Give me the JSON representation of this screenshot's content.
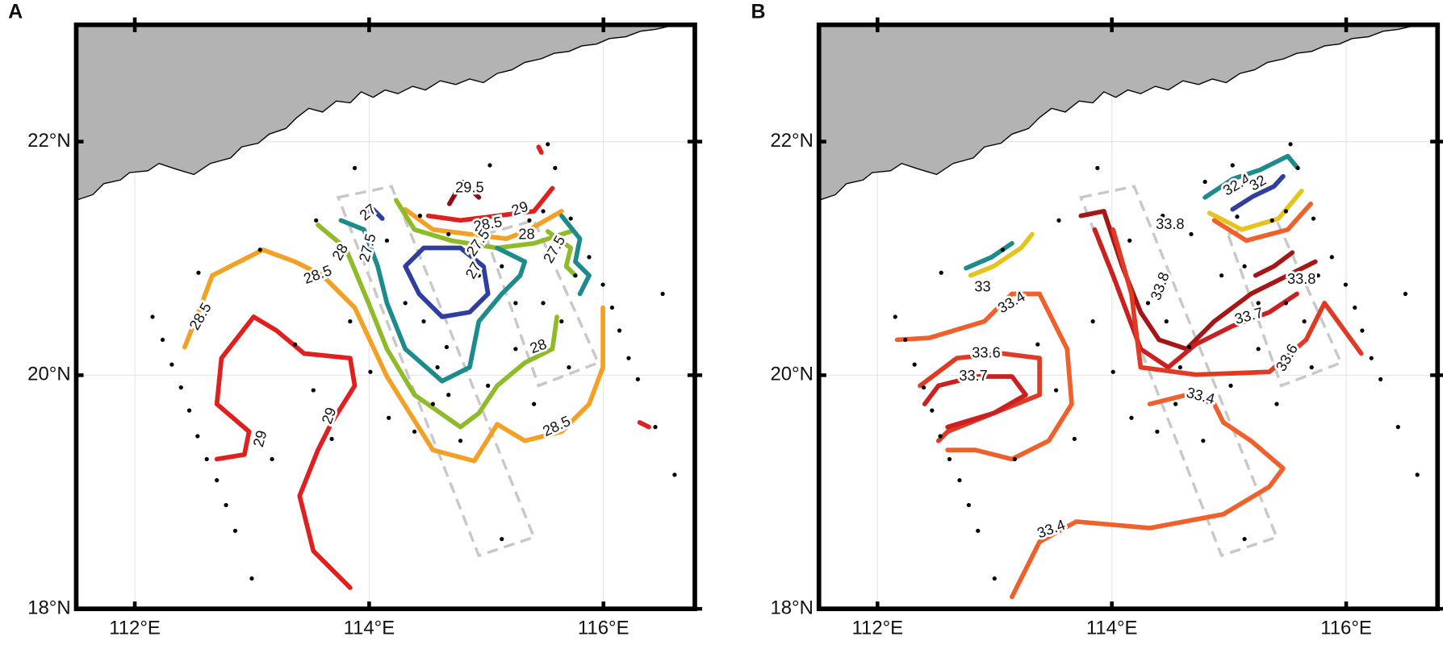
{
  "panels": [
    {
      "letter": "A",
      "xlim": [
        111.5,
        116.78
      ],
      "ylim": [
        18,
        23
      ],
      "xticks": [
        {
          "value": 112,
          "label": "112°E"
        },
        {
          "value": 114,
          "label": "114°E"
        },
        {
          "value": 116,
          "label": "116°E"
        }
      ],
      "yticks": [
        {
          "value": 18,
          "label": "18°N"
        },
        {
          "value": 20,
          "label": "20°N"
        },
        {
          "value": 22,
          "label": "22°N"
        }
      ],
      "grid": true,
      "contour_labels": [
        29.5,
        29,
        28.5,
        28,
        27,
        27.5,
        27.5,
        27,
        27.5,
        28,
        28,
        28.5,
        28.5,
        28.5,
        29,
        29
      ],
      "level_colors": {
        "27": "#2f3f9f",
        "27.5": "#1d8b8b",
        "28": "#8fbb2b",
        "28.5": "#f4a024",
        "29": "#e0201e",
        "29.5": "#8b1014"
      }
    },
    {
      "letter": "B",
      "xlim": [
        111.5,
        116.78
      ],
      "ylim": [
        18,
        23
      ],
      "xticks": [
        {
          "value": 112,
          "label": "112°E"
        },
        {
          "value": 114,
          "label": "114°E"
        },
        {
          "value": 116,
          "label": "116°E"
        }
      ],
      "yticks": [
        {
          "value": 18,
          "label": "18°N"
        },
        {
          "value": 20,
          "label": "20°N"
        },
        {
          "value": 22,
          "label": "22°N"
        }
      ],
      "grid": true,
      "contour_labels": [
        32.4,
        32,
        33.8,
        33,
        33.4,
        33.6,
        33.7,
        33.8,
        33.8,
        33.7,
        33.6,
        33.4,
        33.4
      ],
      "level_colors": {
        "32": "#2f3f9f",
        "32.4": "#1d8b8b",
        "33": "#e6c41e",
        "33.4": "#f0602a",
        "33.6": "#e03a25",
        "33.7": "#cc2020",
        "33.8": "#a51616"
      }
    }
  ]
}
